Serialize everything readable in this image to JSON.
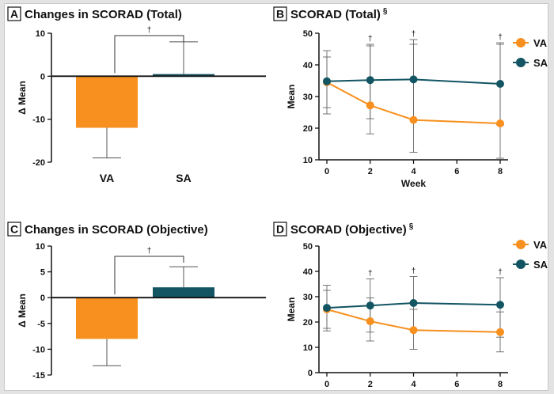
{
  "panels": [
    {
      "letter": "A",
      "title": "Changes in SCORAD (Total)",
      "superscript": ""
    },
    {
      "letter": "B",
      "title": "SCORAD (Total)",
      "superscript": "§"
    },
    {
      "letter": "C",
      "title": "Changes in SCORAD (Objective)",
      "superscript": ""
    },
    {
      "letter": "D",
      "title": "SCORAD (Objective)",
      "superscript": "§"
    }
  ],
  "colors": {
    "VA": "#f7901e",
    "SA": "#135563"
  },
  "chart_data": [
    {
      "type": "bar",
      "title": "Changes in SCORAD (Total)",
      "ylabel": "Δ Mean",
      "categories": [
        "VA",
        "SA"
      ],
      "values": [
        -12,
        0.5
      ],
      "error_bars": [
        [
          -19,
          -12
        ],
        [
          0.5,
          8
        ]
      ],
      "ylim": [
        -20,
        10
      ],
      "yticks": [
        10,
        0,
        -10,
        -20
      ],
      "significance": "†"
    },
    {
      "type": "line",
      "title": "SCORAD (Total)",
      "superscript": "§",
      "xlabel": "Week",
      "ylabel": "Mean",
      "x": [
        0,
        2,
        4,
        8
      ],
      "xticks": [
        0,
        2,
        4,
        6,
        8
      ],
      "ylim": [
        10,
        50
      ],
      "yticks": [
        10,
        20,
        30,
        40,
        50
      ],
      "series": [
        {
          "name": "VA",
          "values": [
            34.5,
            27.2,
            22.6,
            21.5
          ],
          "err": [
            [
              24.5,
              44.5
            ],
            [
              18.2,
              46.5
            ],
            [
              12.4,
              48
            ],
            [
              10.5,
              47
            ]
          ]
        },
        {
          "name": "SA",
          "values": [
            34.8,
            35.2,
            35.4,
            34.0
          ],
          "err": [
            [
              26.5,
              42.5
            ],
            [
              23,
              46
            ],
            [
              22.5,
              46.5
            ],
            [
              21,
              46.5
            ]
          ]
        }
      ],
      "significance": [
        "†",
        "†",
        "†"
      ],
      "legend": "top-right"
    },
    {
      "type": "bar",
      "title": "Changes in SCORAD (Objective)",
      "ylabel": "Δ Mean",
      "categories": [
        "VA",
        "SA"
      ],
      "values": [
        -8,
        2
      ],
      "error_bars": [
        [
          -13.2,
          -8
        ],
        [
          2,
          6
        ]
      ],
      "ylim": [
        -15,
        10
      ],
      "yticks": [
        10,
        5,
        0,
        -5,
        -10,
        -15
      ],
      "significance": "†"
    },
    {
      "type": "line",
      "title": "SCORAD (Objective)",
      "superscript": "§",
      "xlabel": "",
      "ylabel": "Mean",
      "x": [
        0,
        2,
        4,
        8
      ],
      "xticks": [
        0,
        2,
        4,
        6,
        8
      ],
      "ylim": [
        0,
        50
      ],
      "yticks": [
        0,
        10,
        20,
        30,
        40,
        50
      ],
      "series": [
        {
          "name": "VA",
          "values": [
            25.0,
            20.3,
            16.8,
            16.0
          ],
          "err": [
            [
              16.5,
              34.5
            ],
            [
              12.5,
              29.5
            ],
            [
              9.2,
              25
            ],
            [
              8.2,
              24
            ]
          ]
        },
        {
          "name": "SA",
          "values": [
            25.6,
            26.5,
            27.5,
            26.8
          ],
          "err": [
            [
              17.5,
              32.5
            ],
            [
              16,
              37
            ],
            [
              16.5,
              38
            ],
            [
              14,
              37.5
            ]
          ]
        }
      ],
      "significance": [
        "†",
        "†",
        "†"
      ],
      "legend": "top-right"
    }
  ]
}
